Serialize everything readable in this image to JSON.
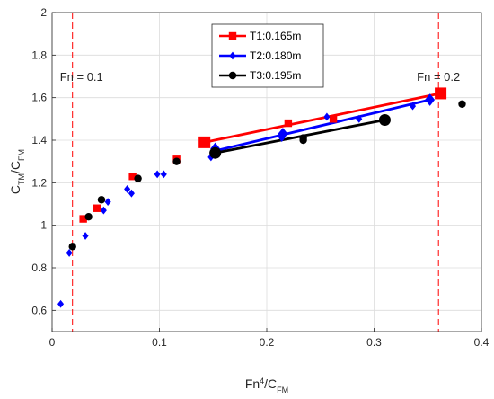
{
  "chart_data": {
    "type": "scatter",
    "xlabel": {
      "base": "Fn",
      "sup": "4",
      "rest": "/C",
      "sub": "FM"
    },
    "ylabel": {
      "base": "C",
      "sub1": "TM",
      "mid": "/C",
      "sub2": "FM"
    },
    "xlim": [
      0,
      0.4
    ],
    "ylim": [
      0.5,
      2
    ],
    "xticks": [
      0,
      0.1,
      0.2,
      0.3,
      0.4
    ],
    "xtick_labels": [
      "0",
      "0.1",
      "0.2",
      "0.3",
      "0.4"
    ],
    "yticks": [
      0.6,
      0.8,
      1,
      1.2,
      1.4,
      1.6,
      1.8,
      2
    ],
    "ytick_labels": [
      "0.6",
      "0.8",
      "1",
      "1.2",
      "1.4",
      "1.6",
      "1.8",
      "2"
    ],
    "grid": true,
    "legend_position": "top-center",
    "vlines": [
      {
        "x": 0.019,
        "label": "Fn = 0.1",
        "color": "#ff0000"
      },
      {
        "x": 0.36,
        "label": "Fn = 0.2",
        "color": "#ff0000"
      }
    ],
    "series": [
      {
        "name": "T1:0.165m",
        "color": "#ff0000",
        "marker": "square",
        "points": [
          {
            "x": 0.029,
            "y": 1.03
          },
          {
            "x": 0.042,
            "y": 1.08
          },
          {
            "x": 0.075,
            "y": 1.23
          },
          {
            "x": 0.116,
            "y": 1.31
          },
          {
            "x": 0.142,
            "y": 1.39,
            "large": true
          },
          {
            "x": 0.22,
            "y": 1.48
          },
          {
            "x": 0.262,
            "y": 1.5
          },
          {
            "x": 0.362,
            "y": 1.62,
            "large": true
          }
        ],
        "fit_line": [
          [
            0.142,
            1.39
          ],
          [
            0.362,
            1.62
          ]
        ]
      },
      {
        "name": "T2:0.180m",
        "color": "#0000ff",
        "marker": "diamond",
        "points": [
          {
            "x": 0.008,
            "y": 0.63
          },
          {
            "x": 0.016,
            "y": 0.87
          },
          {
            "x": 0.031,
            "y": 0.95
          },
          {
            "x": 0.048,
            "y": 1.07
          },
          {
            "x": 0.052,
            "y": 1.11
          },
          {
            "x": 0.07,
            "y": 1.17
          },
          {
            "x": 0.074,
            "y": 1.15
          },
          {
            "x": 0.098,
            "y": 1.24
          },
          {
            "x": 0.104,
            "y": 1.24
          },
          {
            "x": 0.148,
            "y": 1.32
          },
          {
            "x": 0.152,
            "y": 1.36,
            "large": true
          },
          {
            "x": 0.214,
            "y": 1.41
          },
          {
            "x": 0.215,
            "y": 1.43,
            "large": true
          },
          {
            "x": 0.256,
            "y": 1.51
          },
          {
            "x": 0.286,
            "y": 1.5
          },
          {
            "x": 0.336,
            "y": 1.56
          },
          {
            "x": 0.352,
            "y": 1.59,
            "large": true
          }
        ],
        "fit_line": [
          [
            0.152,
            1.35
          ],
          [
            0.352,
            1.59
          ]
        ]
      },
      {
        "name": "T3:0.195m",
        "color": "#000000",
        "marker": "circle",
        "points": [
          {
            "x": 0.019,
            "y": 0.9
          },
          {
            "x": 0.034,
            "y": 1.04
          },
          {
            "x": 0.046,
            "y": 1.12
          },
          {
            "x": 0.08,
            "y": 1.22
          },
          {
            "x": 0.116,
            "y": 1.3
          },
          {
            "x": 0.152,
            "y": 1.34,
            "large": true
          },
          {
            "x": 0.234,
            "y": 1.41
          },
          {
            "x": 0.234,
            "y": 1.4
          },
          {
            "x": 0.31,
            "y": 1.5
          },
          {
            "x": 0.31,
            "y": 1.495,
            "large": true
          },
          {
            "x": 0.382,
            "y": 1.57
          }
        ],
        "fit_line": [
          [
            0.152,
            1.34
          ],
          [
            0.31,
            1.495
          ]
        ]
      }
    ]
  }
}
